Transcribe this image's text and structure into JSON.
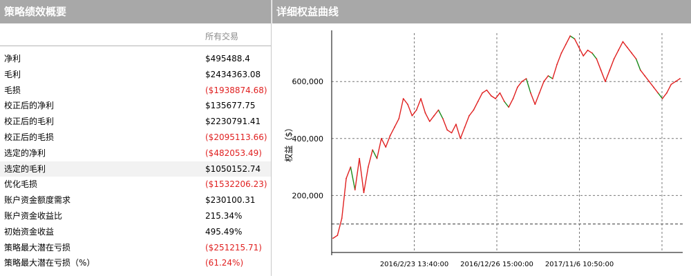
{
  "left_panel": {
    "title": "策略绩效概要",
    "column_header": "所有交易",
    "rows": [
      {
        "label": "净利",
        "value": "$495488.4",
        "negative": false
      },
      {
        "label": "毛利",
        "value": "$2434363.08",
        "negative": false
      },
      {
        "label": "毛损",
        "value": "($1938874.68)",
        "negative": true
      },
      {
        "label": "校正后的净利",
        "value": "$135677.75",
        "negative": false
      },
      {
        "label": "校正后的毛利",
        "value": "$2230791.41",
        "negative": false
      },
      {
        "label": "校正后的毛损",
        "value": "($2095113.66)",
        "negative": true
      },
      {
        "label": "选定的净利",
        "value": "($482053.49)",
        "negative": true
      },
      {
        "label": "选定的毛利",
        "value": "$1050152.74",
        "negative": false,
        "highlighted": true
      },
      {
        "label": "优化毛损",
        "value": "($1532206.23)",
        "negative": true
      },
      {
        "label": "账户资金额度需求",
        "value": "$230100.31",
        "negative": false
      },
      {
        "label": "账户资金收益比",
        "value": "215.34%",
        "negative": false
      },
      {
        "label": "初始资金收益",
        "value": "495.49%",
        "negative": false
      },
      {
        "label": "策略最大潜在亏损",
        "value": "($251215.71)",
        "negative": true
      },
      {
        "label": "策略最大潜在亏损（%）",
        "value": "(61.24%)",
        "negative": true
      }
    ]
  },
  "right_panel": {
    "title": "详细权益曲线"
  },
  "colors": {
    "header_bg": "#a8a8a8",
    "negative": "#e02020",
    "line_up": "#e02020",
    "line_down": "#1a8a1a"
  },
  "chart_data": {
    "type": "line",
    "title": "",
    "xlabel": "",
    "ylabel": "权益（$）",
    "ylim": [
      0,
      770000
    ],
    "yticks": [
      200000,
      400000,
      600000
    ],
    "ytick_labels": [
      "200,000",
      "400,000",
      "600,000"
    ],
    "xtick_labels": [
      "2016/2/23 13:40:00",
      "2016/12/26 15:00:00",
      "2017/11/6 10:50:00"
    ],
    "grid": true,
    "series": [
      {
        "values": [
          50000,
          60000,
          120000,
          260000,
          300000,
          220000,
          330000,
          210000,
          300000,
          360000,
          330000,
          400000,
          370000,
          410000,
          440000,
          470000,
          540000,
          520000,
          480000,
          500000,
          540000,
          490000,
          460000,
          480000,
          500000,
          470000,
          430000,
          420000,
          450000,
          400000,
          440000,
          480000,
          500000,
          530000,
          560000,
          570000,
          550000,
          540000,
          560000,
          530000,
          510000,
          540000,
          580000,
          600000,
          610000,
          560000,
          520000,
          560000,
          600000,
          620000,
          610000,
          660000,
          700000,
          730000,
          760000,
          750000,
          720000,
          690000,
          710000,
          700000,
          680000,
          640000,
          600000,
          640000,
          680000,
          710000,
          740000,
          720000,
          700000,
          680000,
          640000,
          620000,
          600000,
          580000,
          560000,
          540000,
          560000,
          590000,
          600000,
          610000
        ]
      }
    ]
  }
}
